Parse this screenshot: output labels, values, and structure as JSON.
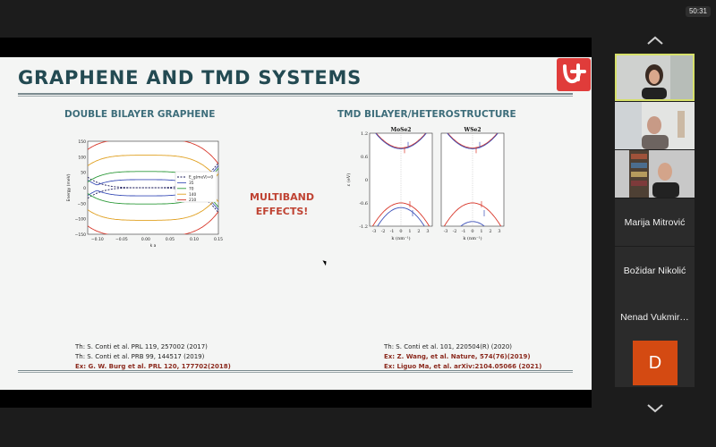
{
  "meeting": {
    "timer": "50:31"
  },
  "slide": {
    "title": "GRAPHENE AND TMD SYSTEMS",
    "left_heading": "DOUBLE BILAYER GRAPHENE",
    "right_heading": "TMD BILAYER/HETEROSTRUCTURE",
    "multiband_line1": "MULTIBAND",
    "multiband_line2": "EFFECTS!",
    "left_refs": [
      "Th: S. Conti et al. PRL 119, 257002 (2017)",
      "Th: S. Conti et al. PRB 99, 144517 (2019)",
      "Ex: G. W. Burg et al. PRL 120, 177702(2018)"
    ],
    "right_refs": [
      "Th: S. Conti et al. 101, 220504(R) (2020)",
      "Ex: Z. Wang, et al. Nature, 574(76)(2019)",
      "Ex: Liguo Ma, et al. arXiv:2104.05066 (2021)"
    ]
  },
  "chart_data": [
    {
      "type": "line",
      "ylabel": "Energy (meV)",
      "xlabel": "k a",
      "xlim": [
        -0.12,
        0.15
      ],
      "ylim": [
        -150,
        150
      ],
      "x_ticks": [
        "−0.10",
        "−0.05",
        "0.00",
        "0.05",
        "0.10",
        "0.15"
      ],
      "y_ticks": [
        "150",
        "100",
        "50",
        "0",
        "−50",
        "−100",
        "−150"
      ],
      "legend_title": "E_g(meV)=0",
      "legend": [
        "35",
        "70",
        "140",
        "210"
      ],
      "series": [
        {
          "name": "E_g(meV)=0",
          "color": "#1a1a5a",
          "gap": 0
        },
        {
          "name": "35",
          "color": "#3b4fb8",
          "gap": 35
        },
        {
          "name": "70",
          "color": "#2e9a3a",
          "gap": 70
        },
        {
          "name": "140",
          "color": "#e0a020",
          "gap": 140
        },
        {
          "name": "210",
          "color": "#d8372a",
          "gap": 210
        }
      ]
    },
    {
      "type": "line",
      "panels": [
        "MoSe2",
        "WSe2"
      ],
      "ylabel": "ε (eV)",
      "xlabel": "k (nm⁻¹)",
      "ylim": [
        -1.2,
        1.2
      ],
      "y_ticks": [
        "1.2",
        "0.6",
        "0",
        "-0.6",
        "-1.2"
      ],
      "x_ticks": [
        "-3",
        "-2",
        "-1",
        "0",
        "1",
        "2",
        "3"
      ]
    }
  ],
  "sidebar": {
    "participants": [
      {
        "name": ""
      },
      {
        "name": ""
      },
      {
        "name": ""
      },
      {
        "name": "Marija Mitrović"
      },
      {
        "name": "Božidar Nikolić"
      },
      {
        "name": "Nenad Vukmir…"
      },
      {
        "name": "D"
      }
    ]
  }
}
